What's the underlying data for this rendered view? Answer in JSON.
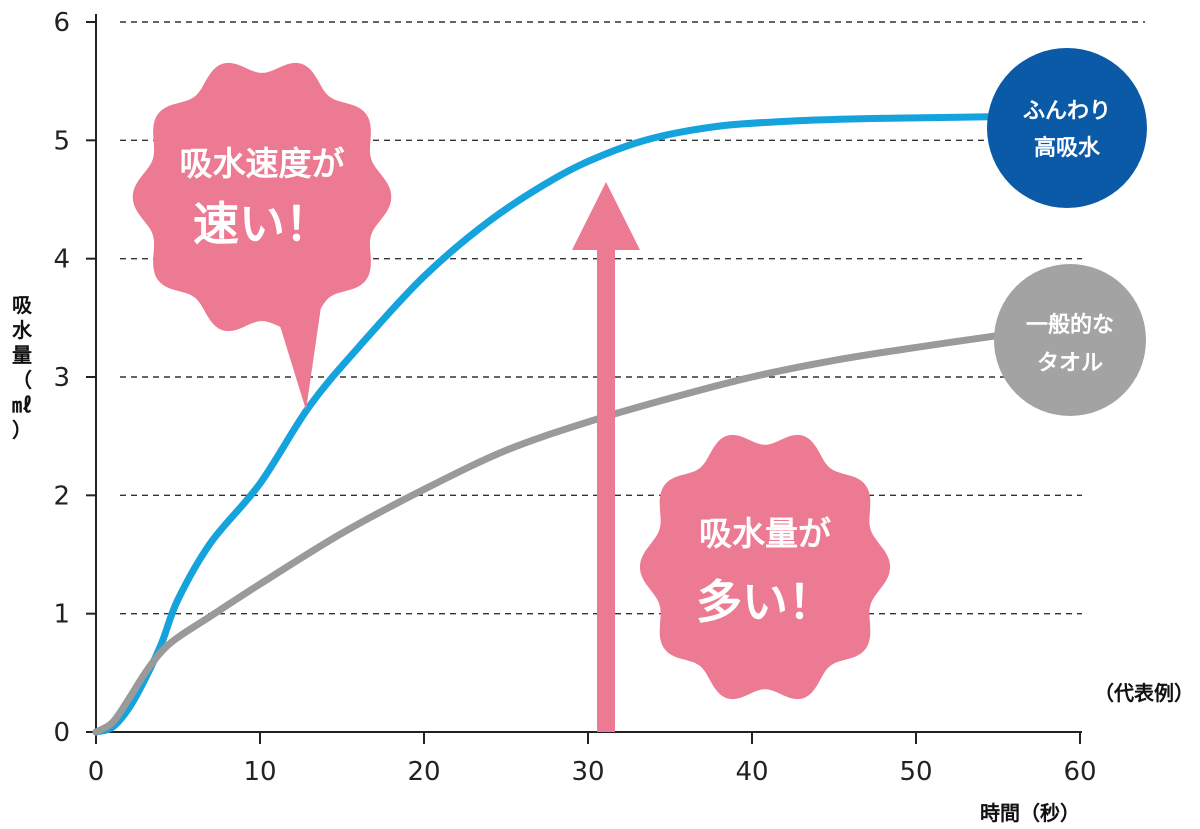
{
  "chart_data": {
    "type": "line",
    "ylabel": "吸水量（㎖）",
    "xlabel": "時間（秒）",
    "note": "（代表例）",
    "xlim": [
      0,
      60
    ],
    "ylim": [
      0,
      6
    ],
    "x_ticks": [
      "0",
      "10",
      "20",
      "30",
      "40",
      "50",
      "60"
    ],
    "y_ticks": [
      "0",
      "1",
      "2",
      "3",
      "4",
      "5",
      "6"
    ],
    "grid": "horizontal-dashed",
    "colors": {
      "fluffy": "#14a3dc",
      "regular": "#9a9a9a",
      "fluffy_badge": "#0a5aa8",
      "regular_badge": "#a3a3a3",
      "callout": "#ec7a92"
    },
    "series": [
      {
        "name": "ふんわり高吸水",
        "name_lines": [
          "ふんわり",
          "高吸水"
        ],
        "x": [
          0,
          1,
          2,
          3,
          4,
          5,
          7,
          10,
          13,
          16,
          20,
          24,
          28,
          31,
          34,
          38,
          42,
          46,
          50,
          55
        ],
        "y": [
          0,
          0.04,
          0.2,
          0.45,
          0.75,
          1.12,
          1.6,
          2.1,
          2.75,
          3.25,
          3.85,
          4.32,
          4.68,
          4.88,
          5.02,
          5.12,
          5.16,
          5.18,
          5.19,
          5.2
        ]
      },
      {
        "name": "一般的なタオル",
        "name_lines": [
          "一般的な",
          "タオル"
        ],
        "x": [
          0,
          1,
          2,
          3,
          4,
          5,
          7,
          10,
          15,
          20,
          25,
          30,
          35,
          40,
          45,
          50,
          55
        ],
        "y": [
          0,
          0.08,
          0.28,
          0.5,
          0.68,
          0.8,
          0.98,
          1.25,
          1.68,
          2.05,
          2.38,
          2.62,
          2.82,
          3.0,
          3.14,
          3.25,
          3.35
        ]
      }
    ],
    "annotations": [
      {
        "lines": [
          "吸水速度が",
          "速い！"
        ]
      },
      {
        "lines": [
          "吸水量が",
          "多い！"
        ]
      }
    ]
  }
}
